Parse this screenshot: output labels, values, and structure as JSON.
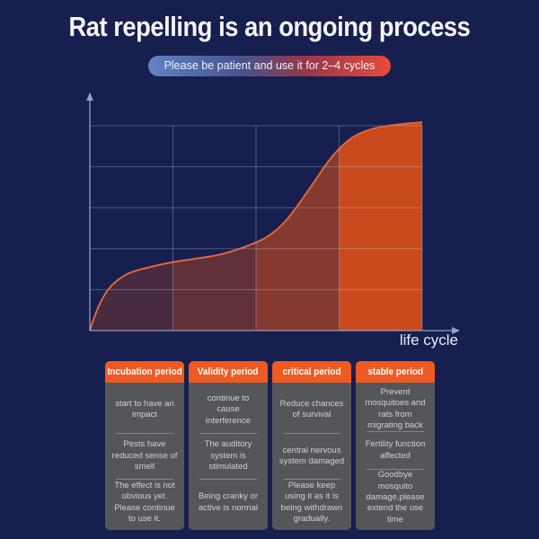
{
  "page": {
    "background": "#161f4d"
  },
  "header": {
    "title": "Rat repelling is an ongoing process",
    "banner_text": "Please be patient and use it for 2–4 cycles"
  },
  "chart_data": {
    "type": "area",
    "title": "",
    "xlabel": "life cycle",
    "ylabel": "",
    "legend": "none",
    "grid": {
      "h_lines": 5,
      "v_lines": 4,
      "visible": true
    },
    "axis_color": "#a8b2cc",
    "grid_color": "rgba(198,208,232,0.32)",
    "curve_color": "#e0653f",
    "fill_color": "#c84a1c",
    "curve_points_pct": [
      [
        0,
        0
      ],
      [
        2,
        10
      ],
      [
        5,
        19
      ],
      [
        8,
        24
      ],
      [
        12,
        28
      ],
      [
        18,
        30.5
      ],
      [
        25,
        33
      ],
      [
        32,
        34.5
      ],
      [
        40,
        36.5
      ],
      [
        50,
        42
      ],
      [
        55,
        46.5
      ],
      [
        59,
        52.5
      ],
      [
        63,
        61
      ],
      [
        68,
        72.5
      ],
      [
        72,
        82
      ],
      [
        76,
        89
      ],
      [
        80,
        94
      ],
      [
        86,
        97.5
      ],
      [
        93,
        99
      ],
      [
        100,
        100
      ]
    ],
    "phases": [
      {
        "name": "Incubation period",
        "x_end_pct": 25,
        "fill_opacity": 0.28
      },
      {
        "name": "Validity period",
        "x_end_pct": 50,
        "fill_opacity": 0.42
      },
      {
        "name": "critical period",
        "x_end_pct": 75,
        "fill_opacity": 0.62
      },
      {
        "name": "stable period",
        "x_end_pct": 100,
        "fill_opacity": 1.0
      }
    ]
  },
  "table": {
    "header_color": "#ee5a23",
    "body_color": "#545659",
    "columns": [
      {
        "header": "Incubation period",
        "cells": [
          "start to have an impact",
          "Pests have reduced sense of smell",
          "The effect is not obvious yet. Please continue to use it."
        ]
      },
      {
        "header": "Validity period",
        "cells": [
          "continue to cause interference",
          "The auditory system is stimulated",
          "Being cranky or active is normal"
        ]
      },
      {
        "header": "critical period",
        "cells": [
          "Reduce chances of survival",
          "central nervous system damaged",
          "Please keep using it as it is being withdrawn gradually."
        ]
      },
      {
        "header": "stable period",
        "cells": [
          "Prevent mosquitoes and rats from migrating back",
          "Fertility function affected",
          "Goodbye mosquito damage,please extend the use time"
        ]
      }
    ]
  }
}
